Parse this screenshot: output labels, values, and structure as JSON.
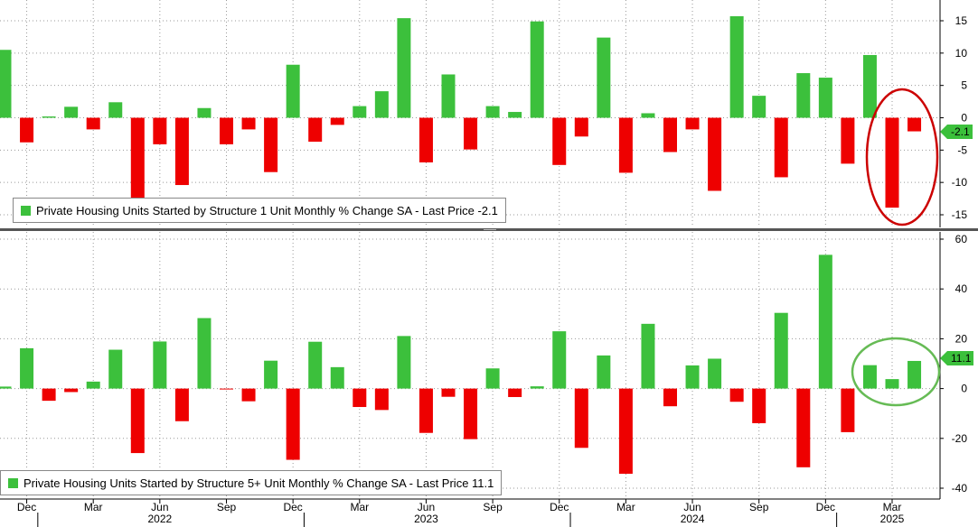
{
  "colors": {
    "positive": "#3cc03c",
    "negative": "#ee0000",
    "annotation_top": "#cc0000",
    "annotation_bottom": "#66bb55",
    "grid": "#999999",
    "background": "#ffffff"
  },
  "chart_data": [
    {
      "type": "bar",
      "series_name": "Private Housing Units Started by Structure 1 Unit Monthly % Change SA",
      "legend_text": "Private Housing Units Started by Structure 1 Unit Monthly % Change SA - Last Price -2.1",
      "last_price": -2.1,
      "last_price_label": "-2.1",
      "ylim": [
        -16,
        17.5
      ],
      "yticks": [
        15,
        10,
        5,
        0,
        -5,
        -10,
        -15
      ],
      "ytick_labels": [
        "15",
        "10",
        "5",
        "0",
        "-5",
        "-10",
        "-15"
      ],
      "grid": true,
      "legend_position": "bottom-left",
      "x": [
        "2021-11",
        "2021-12",
        "2022-01",
        "2022-02",
        "2022-03",
        "2022-04",
        "2022-05",
        "2022-06",
        "2022-07",
        "2022-08",
        "2022-09",
        "2022-10",
        "2022-11",
        "2022-12",
        "2023-01",
        "2023-02",
        "2023-03",
        "2023-04",
        "2023-05",
        "2023-06",
        "2023-07",
        "2023-08",
        "2023-09",
        "2023-10",
        "2023-11",
        "2023-12",
        "2024-01",
        "2024-02",
        "2024-03",
        "2024-04",
        "2024-05",
        "2024-06",
        "2024-07",
        "2024-08",
        "2024-09",
        "2024-10",
        "2024-11",
        "2024-12",
        "2025-01",
        "2025-02",
        "2025-03",
        "2025-04"
      ],
      "values": [
        10.5,
        -3.8,
        0.2,
        1.7,
        -1.8,
        2.4,
        -12.5,
        -4.1,
        -10.4,
        1.5,
        -4.1,
        -1.8,
        -8.4,
        8.2,
        -3.7,
        -1.1,
        1.8,
        4.1,
        15.4,
        -6.9,
        6.7,
        -4.9,
        1.8,
        0.9,
        14.9,
        -7.3,
        -2.9,
        12.4,
        -8.5,
        0.7,
        -5.3,
        -1.8,
        -11.3,
        15.7,
        3.4,
        -9.2,
        6.9,
        6.2,
        -7.1,
        9.7,
        -13.9,
        -2.1
      ]
    },
    {
      "type": "bar",
      "series_name": "Private Housing Units Started by Structure 5+ Unit Monthly % Change SA",
      "legend_text": "Private Housing Units Started by Structure 5+ Unit Monthly % Change SA - Last Price 11.1",
      "last_price": 11.1,
      "last_price_label": "11.1",
      "ylim": [
        -43,
        64
      ],
      "yticks": [
        60,
        40,
        20,
        0,
        -20,
        -40
      ],
      "ytick_labels": [
        "60",
        "40",
        "20",
        "0",
        "-20",
        "-40"
      ],
      "grid": true,
      "legend_position": "bottom-left",
      "x": [
        "2021-11",
        "2021-12",
        "2022-01",
        "2022-02",
        "2022-03",
        "2022-04",
        "2022-05",
        "2022-06",
        "2022-07",
        "2022-08",
        "2022-09",
        "2022-10",
        "2022-11",
        "2022-12",
        "2023-01",
        "2023-02",
        "2023-03",
        "2023-04",
        "2023-05",
        "2023-06",
        "2023-07",
        "2023-08",
        "2023-09",
        "2023-10",
        "2023-11",
        "2023-12",
        "2024-01",
        "2024-02",
        "2024-03",
        "2024-04",
        "2024-05",
        "2024-06",
        "2024-07",
        "2024-08",
        "2024-09",
        "2024-10",
        "2024-11",
        "2024-12",
        "2025-01",
        "2025-02",
        "2025-03",
        "2025-04"
      ],
      "values": [
        0.8,
        16.2,
        -4.9,
        -1.4,
        2.8,
        15.6,
        -25.9,
        18.9,
        -13.1,
        28.3,
        -0.3,
        -5.1,
        11.2,
        -28.6,
        18.8,
        8.6,
        -7.4,
        -8.6,
        21.1,
        -17.8,
        -3.3,
        -20.3,
        8.1,
        -3.4,
        0.9,
        23.0,
        -23.8,
        13.3,
        -34.2,
        26.0,
        -7.1,
        9.3,
        12.0,
        -5.3,
        -13.9,
        30.4,
        -31.6,
        53.7,
        -17.5,
        9.4,
        3.8,
        11.1
      ]
    }
  ],
  "x_axis": {
    "month_labels": [
      {
        "index": 1,
        "text": "Dec"
      },
      {
        "index": 4,
        "text": "Mar"
      },
      {
        "index": 7,
        "text": "Jun"
      },
      {
        "index": 10,
        "text": "Sep"
      },
      {
        "index": 13,
        "text": "Dec"
      },
      {
        "index": 16,
        "text": "Mar"
      },
      {
        "index": 19,
        "text": "Jun"
      },
      {
        "index": 22,
        "text": "Sep"
      },
      {
        "index": 25,
        "text": "Dec"
      },
      {
        "index": 28,
        "text": "Mar"
      },
      {
        "index": 31,
        "text": "Jun"
      },
      {
        "index": 34,
        "text": "Sep"
      },
      {
        "index": 37,
        "text": "Dec"
      },
      {
        "index": 40,
        "text": "Mar"
      }
    ],
    "year_labels": [
      {
        "index": 7,
        "text": "2022"
      },
      {
        "index": 19,
        "text": "2023"
      },
      {
        "index": 31,
        "text": "2024"
      },
      {
        "index": 40,
        "text": "2025"
      }
    ]
  }
}
